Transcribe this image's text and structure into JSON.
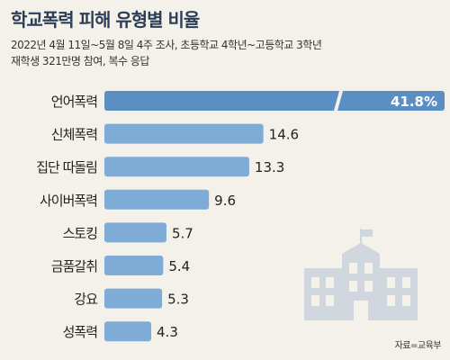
{
  "header": {
    "title": "학교폭력 피해 유형별 비율",
    "subtitle_line1": "2022년 4월 11일~5월 8일 4주 조사, 초등학교 4학년~고등학교 3학년",
    "subtitle_line2": "재학생 321만명 참여, 복수 응답"
  },
  "source": "자료=교육부",
  "colors": {
    "bar_dark": "#5b8fc4",
    "bar_light": "#7facd6",
    "text": "#222222",
    "highlight_text": "#ffffff",
    "building": "#cfd6dd"
  },
  "icons": {
    "illustration": "school-building-icon"
  },
  "chart_data": {
    "type": "bar",
    "orientation": "horizontal",
    "categories": [
      "언어폭력",
      "신체폭력",
      "집단 따돌림",
      "사이버폭력",
      "스토킹",
      "금품갈취",
      "강요",
      "성폭력"
    ],
    "values": [
      41.8,
      14.6,
      13.3,
      9.6,
      5.7,
      5.4,
      5.3,
      4.3
    ],
    "value_labels": [
      "41.8%",
      "14.6",
      "13.3",
      "9.6",
      "5.7",
      "5.4",
      "5.3",
      "4.3"
    ],
    "axis_break": {
      "category": "언어폭력",
      "note": "bar shown with a break"
    },
    "grid": false,
    "legend": "none"
  }
}
